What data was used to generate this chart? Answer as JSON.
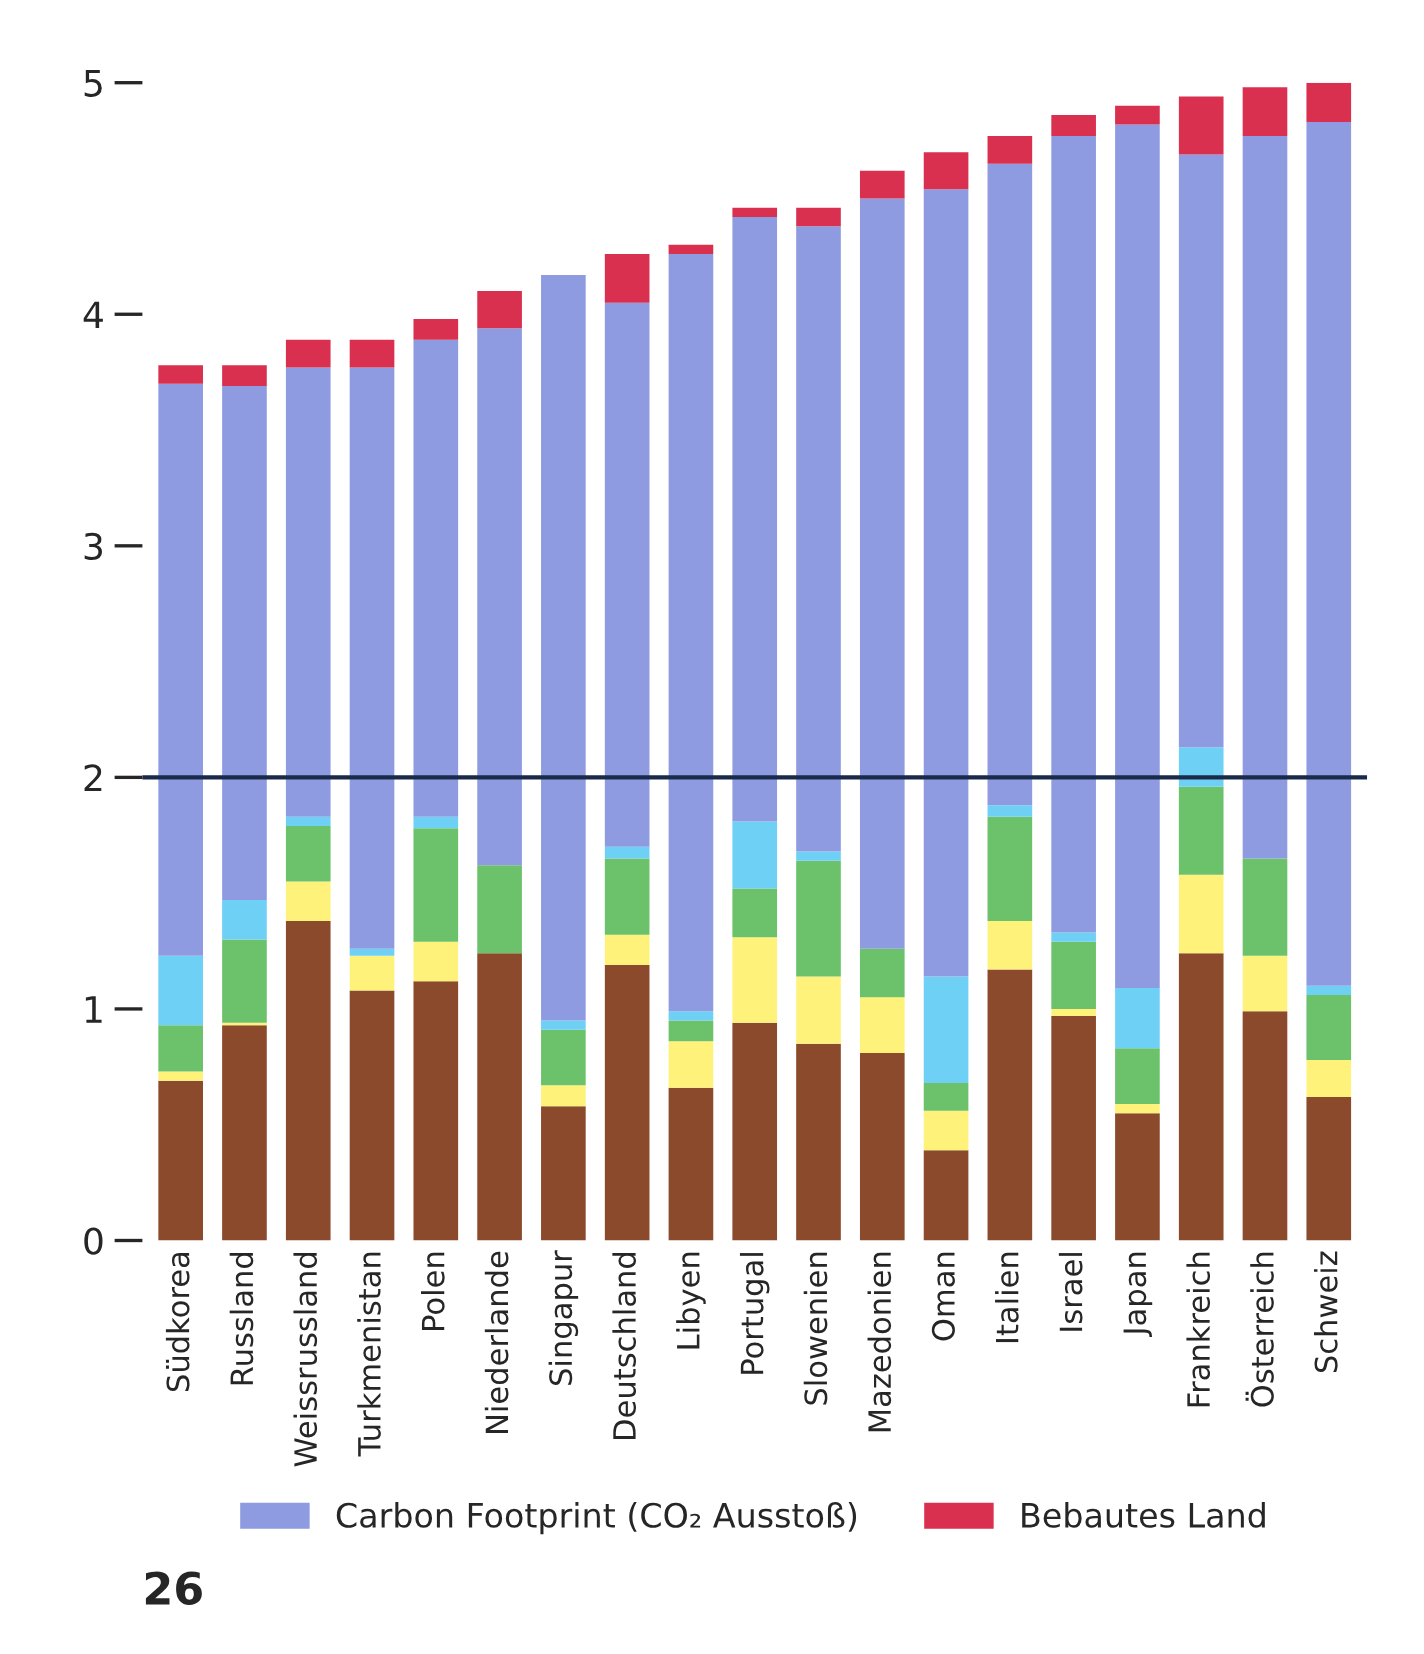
{
  "chart_data": {
    "type": "bar",
    "stacked": true,
    "categories": [
      "Südkorea",
      "Russland",
      "Weissrussland",
      "Turkmenistan",
      "Polen",
      "Niederlande",
      "Singapur",
      "Deutschland",
      "Libyen",
      "Portugal",
      "Slowenien",
      "Mazedonien",
      "Oman",
      "Italien",
      "Israel",
      "Japan",
      "Frankreich",
      "Österreich",
      "Schweiz"
    ],
    "series": [
      {
        "color": "#8b4a2b",
        "values": [
          0.69,
          0.93,
          1.38,
          1.08,
          1.12,
          1.24,
          0.58,
          1.19,
          0.66,
          0.94,
          0.85,
          0.81,
          0.39,
          1.17,
          0.97,
          0.55,
          1.24,
          0.99,
          0.62
        ]
      },
      {
        "color": "#fff27a",
        "values": [
          0.04,
          0.01,
          0.17,
          0.15,
          0.17,
          null,
          0.09,
          0.13,
          0.2,
          0.37,
          0.29,
          0.24,
          0.17,
          0.21,
          0.03,
          0.04,
          0.34,
          0.24,
          0.16
        ]
      },
      {
        "color": "#6cc26a",
        "values": [
          0.2,
          0.36,
          0.24,
          null,
          0.49,
          0.38,
          0.24,
          0.33,
          0.09,
          0.21,
          0.5,
          0.21,
          0.12,
          0.45,
          0.29,
          0.24,
          0.38,
          0.42,
          0.28
        ]
      },
      {
        "color": "#6fd0f5",
        "values": [
          0.3,
          0.17,
          0.04,
          0.03,
          0.05,
          null,
          0.04,
          0.05,
          0.04,
          0.29,
          0.04,
          null,
          0.46,
          0.05,
          0.04,
          0.26,
          0.17,
          null,
          0.04
        ]
      },
      {
        "name": "Carbon Footprint (CO₂ Ausstoß)",
        "color": "#8f9be0",
        "values": [
          2.47,
          2.22,
          1.94,
          2.51,
          2.06,
          2.32,
          3.22,
          2.35,
          3.27,
          2.61,
          2.7,
          3.24,
          3.4,
          2.77,
          3.44,
          3.73,
          2.56,
          3.12,
          3.73
        ]
      },
      {
        "name": "Bebautes Land",
        "color": "#d9304f",
        "values": [
          0.08,
          0.09,
          0.12,
          0.12,
          0.09,
          0.16,
          null,
          0.21,
          0.04,
          0.04,
          0.08,
          0.12,
          0.16,
          0.12,
          0.09,
          0.08,
          0.25,
          0.21,
          0.17
        ]
      }
    ],
    "ylim": [
      0,
      5
    ],
    "yticks": [
      0,
      1,
      2,
      3,
      4,
      5
    ],
    "ref_lines": [
      {
        "axis": "y",
        "value": 2,
        "color": "#1a2a4a"
      }
    ],
    "legend": "bottom",
    "grid": false,
    "annotations": [
      "26"
    ]
  }
}
